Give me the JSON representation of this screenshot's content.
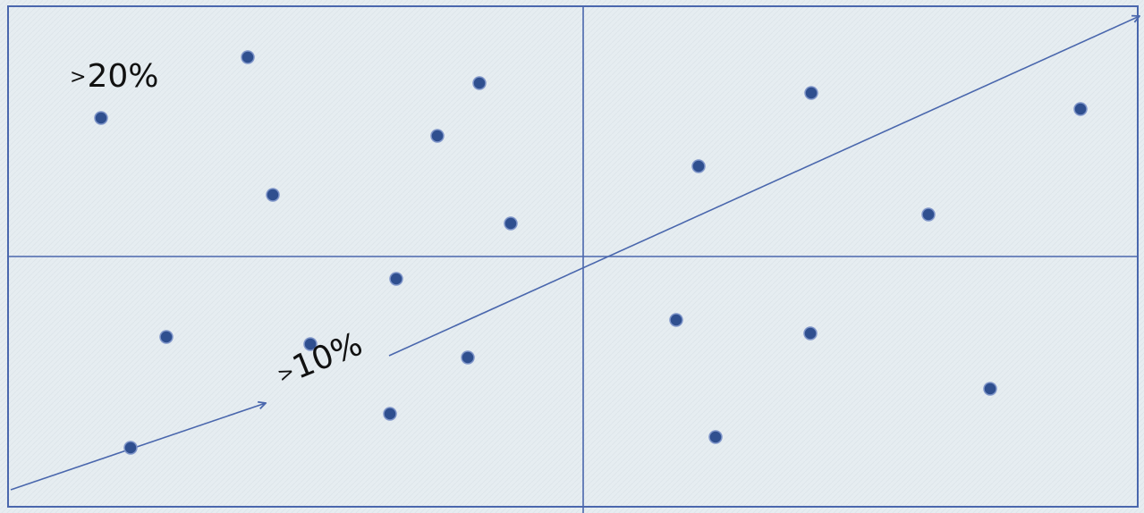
{
  "colors": {
    "background": "#e6edf1",
    "line": "#4a67ad",
    "dot_fill": "#2f4f8f",
    "dot_stroke": "#7f95c9",
    "text": "#111111"
  },
  "labels": {
    "top_left": {
      "prefix": ">",
      "value": "20%"
    },
    "arrow": {
      "prefix": ">",
      "value": "10%"
    }
  },
  "icons": {
    "arrow": "arrow-up-right-icon",
    "dot": "dot-icon"
  }
}
